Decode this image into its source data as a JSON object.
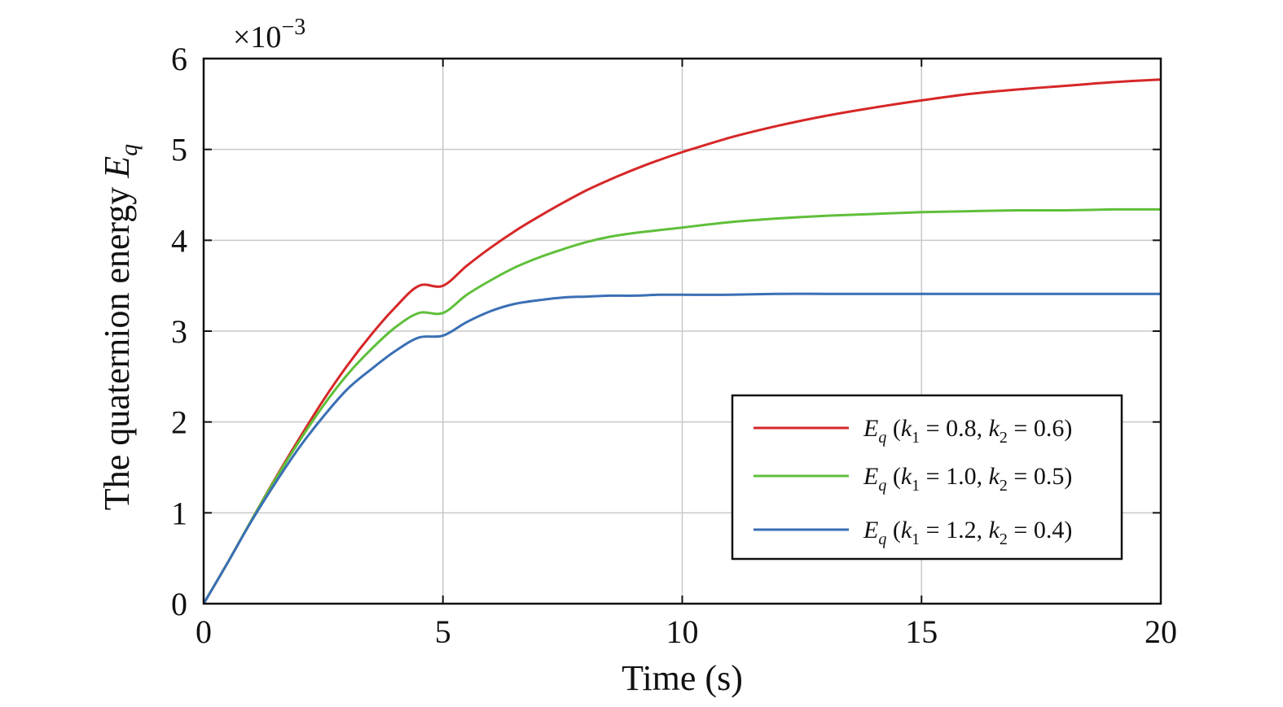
{
  "chart_data": {
    "type": "line",
    "xlabel": "Time (s)",
    "ylabel": "The quaternion energy E_q",
    "ylabel_main": "The quaternion energy ",
    "ylabel_sym": "E",
    "ylabel_sub": "q",
    "y_scale_note": "×10",
    "y_scale_exp": "−3",
    "xlim": [
      0,
      20
    ],
    "ylim": [
      0,
      6
    ],
    "xticks": [
      0,
      5,
      10,
      15,
      20
    ],
    "yticks": [
      0,
      1,
      2,
      3,
      4,
      5,
      6
    ],
    "xtick_labels": [
      "0",
      "5",
      "10",
      "15",
      "20"
    ],
    "ytick_labels": [
      "0",
      "1",
      "2",
      "3",
      "4",
      "5",
      "6"
    ],
    "grid": true,
    "legend_position": "lower-right",
    "series": [
      {
        "name": "E_q (k1 = 0.8, k2 = 0.6)",
        "label_sym": "E",
        "label_sub": "q",
        "k1_value": "0.8",
        "k2_value": "0.6",
        "color": "#d62728",
        "x": [
          0,
          0.5,
          1,
          1.5,
          2,
          2.5,
          3,
          3.5,
          4,
          4.5,
          5,
          5.5,
          6,
          6.5,
          7,
          7.5,
          8,
          8.5,
          9,
          9.5,
          10,
          11,
          12,
          13,
          14,
          15,
          16,
          17,
          18,
          19,
          20
        ],
        "y": [
          0,
          0.45,
          0.92,
          1.38,
          1.82,
          2.24,
          2.62,
          2.96,
          3.26,
          3.5,
          3.5,
          3.72,
          3.92,
          4.1,
          4.26,
          4.41,
          4.55,
          4.67,
          4.78,
          4.88,
          4.97,
          5.13,
          5.26,
          5.37,
          5.46,
          5.54,
          5.61,
          5.66,
          5.7,
          5.74,
          5.77
        ]
      },
      {
        "name": "E_q (k1 = 1.0, k2 = 0.5)",
        "label_sym": "E",
        "label_sub": "q",
        "k1_value": "1.0",
        "k2_value": "0.5",
        "color": "#5fbf3a",
        "x": [
          0,
          0.5,
          1,
          1.5,
          2,
          2.5,
          3,
          3.5,
          4,
          4.5,
          5,
          5.5,
          6,
          6.5,
          7,
          7.5,
          8,
          8.5,
          9,
          9.5,
          10,
          11,
          12,
          13,
          14,
          15,
          16,
          17,
          18,
          19,
          20
        ],
        "y": [
          0,
          0.45,
          0.92,
          1.37,
          1.79,
          2.18,
          2.52,
          2.8,
          3.04,
          3.2,
          3.2,
          3.4,
          3.56,
          3.7,
          3.81,
          3.9,
          3.98,
          4.04,
          4.08,
          4.11,
          4.14,
          4.2,
          4.24,
          4.27,
          4.29,
          4.31,
          4.32,
          4.33,
          4.33,
          4.34,
          4.34
        ]
      },
      {
        "name": "E_q (k1 = 1.2, k2 = 0.4)",
        "label_sym": "E",
        "label_sub": "q",
        "k1_value": "1.2",
        "k2_value": "0.4",
        "color": "#3a6fb5",
        "x": [
          0,
          0.5,
          1,
          1.5,
          2,
          2.5,
          3,
          3.5,
          4,
          4.5,
          5,
          5.5,
          6,
          6.5,
          7,
          7.5,
          8,
          8.5,
          9,
          9.5,
          10,
          11,
          12,
          13,
          14,
          15,
          16,
          17,
          18,
          19,
          20
        ],
        "y": [
          0,
          0.45,
          0.91,
          1.33,
          1.72,
          2.06,
          2.36,
          2.58,
          2.78,
          2.93,
          2.95,
          3.1,
          3.22,
          3.3,
          3.34,
          3.37,
          3.38,
          3.39,
          3.39,
          3.4,
          3.4,
          3.4,
          3.41,
          3.41,
          3.41,
          3.41,
          3.41,
          3.41,
          3.41,
          3.41,
          3.41
        ]
      }
    ]
  }
}
